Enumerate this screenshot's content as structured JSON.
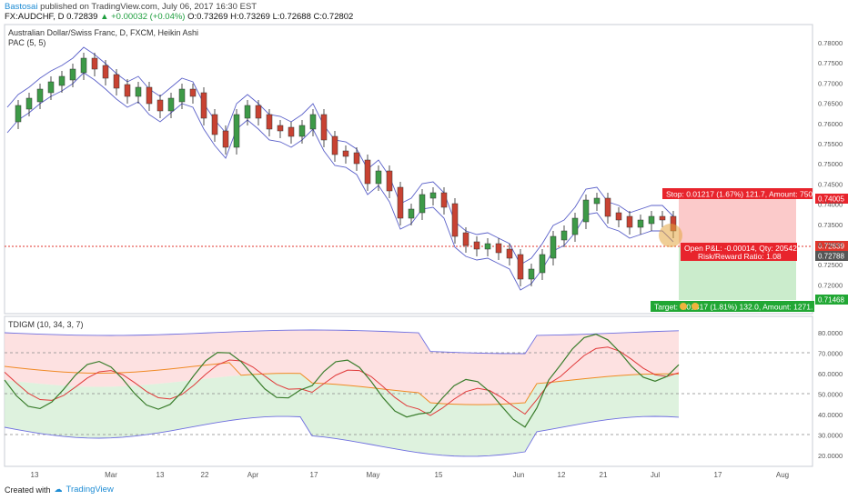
{
  "header": {
    "user": "Bastosai",
    "published_text": "published on TradingView.com, July 06, 2017 16:30 EST",
    "symbol_line": "FX:AUDCHF, D",
    "last": "0.72839",
    "change": "+0.00032 (+0.04%)",
    "ohlc": "O:0.73269 H:0.73269 L:0.72688 C:0.72802"
  },
  "main_pane": {
    "title": "Australian Dollar/Swiss Franc, D, FXCM, Heikin Ashi",
    "indicator": "PAC (5, 5)",
    "y_ticks": [
      "0.78000",
      "0.77500",
      "0.77000",
      "0.76500",
      "0.76000",
      "0.75500",
      "0.75000",
      "0.74500",
      "0.74000",
      "0.73500",
      "0.73000",
      "0.72500",
      "0.72000"
    ],
    "labels": {
      "stop_price": "0.74005",
      "current_price": "0.72839",
      "close_price": "0.72788",
      "target_price": "0.71468"
    },
    "position": {
      "stop_text": "Stop: 0.01217 (1.67%) 121.7, Amount: 750",
      "open_pl_text": "Open P&L: -0.00014, Qty: 20542",
      "risk_reward_text": "Risk/Reward Ratio: 1.08",
      "target_text": "Target: 0.01317 (1.81%) 132.0, Amount: 1271.",
      "target_prefix": "Target:"
    }
  },
  "osc_pane": {
    "title": "TDIGM (10, 34, 3, 7)",
    "y_ticks": [
      "80.0000",
      "70.0000",
      "60.0000",
      "50.0000",
      "40.0000",
      "30.0000",
      "20.0000"
    ]
  },
  "x_axis": {
    "ticks": [
      "13",
      "Mar",
      "13",
      "22",
      "Apr",
      "17",
      "May",
      "15",
      "Jun",
      "12",
      "21",
      "Jul",
      "17",
      "Aug"
    ]
  },
  "footer": {
    "created_with": "Created with",
    "brand": "TradingView"
  },
  "colors": {
    "bull": "#3d9a47",
    "bear": "#c84232",
    "pac": "#5b61c9",
    "stop_fill": "#f9b8b8",
    "target_fill": "#b9e6bb",
    "stop_label": "#e8242c",
    "target_label": "#21a734",
    "price_line": "#e0362c",
    "osc_green": "#3a7d2c",
    "osc_red": "#e03a3a",
    "osc_orange": "#f08a24",
    "osc_band": "#6e6ee0"
  }
}
